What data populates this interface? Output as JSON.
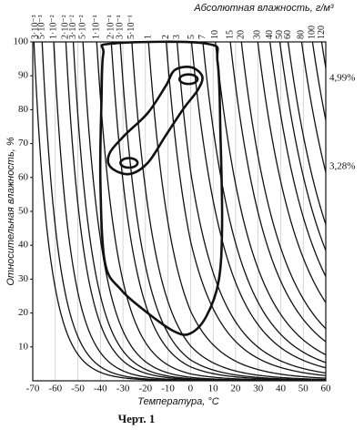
{
  "chart_data": {
    "type": "psychrometric",
    "title": "Абсолютная влажность, г/м³",
    "x_label": "Температура, °C",
    "y_label": "Относительная влажность, %",
    "xlim": [
      -70,
      60
    ],
    "xticks": [
      -70,
      -60,
      -50,
      -40,
      -30,
      -20,
      -10,
      0,
      10,
      20,
      30,
      40,
      50,
      60
    ],
    "ylim": [
      0,
      100
    ],
    "yticks": [
      10,
      20,
      30,
      40,
      50,
      60,
      70,
      80,
      90,
      100
    ],
    "grid": true,
    "color": "#111111",
    "curves": [
      {
        "value": 0.003,
        "label": "3·10⁻³"
      },
      {
        "value": 0.005,
        "label": "5·10⁻³"
      },
      {
        "value": 0.01,
        "label": "1·10⁻²"
      },
      {
        "value": 0.02,
        "label": "2·10⁻²"
      },
      {
        "value": 0.03,
        "label": "3·10⁻²"
      },
      {
        "value": 0.05,
        "label": "5·10⁻²"
      },
      {
        "value": 0.1,
        "label": "1·10⁻¹"
      },
      {
        "value": 0.2,
        "label": "2·10⁻¹"
      },
      {
        "value": 0.3,
        "label": "3·10⁻¹"
      },
      {
        "value": 0.5,
        "label": "5·10⁻¹"
      },
      {
        "value": 1,
        "label": "1"
      },
      {
        "value": 2,
        "label": "2"
      },
      {
        "value": 3,
        "label": "3"
      },
      {
        "value": 5,
        "label": "5"
      },
      {
        "value": 7,
        "label": "7"
      },
      {
        "value": 10,
        "label": "10"
      },
      {
        "value": 15,
        "label": "15"
      },
      {
        "value": 20,
        "label": "20"
      },
      {
        "value": 30,
        "label": "30"
      },
      {
        "value": 40,
        "label": "40"
      },
      {
        "value": 50,
        "label": "50"
      },
      {
        "value": 60,
        "label": "60"
      },
      {
        "value": 80,
        "label": "80"
      },
      {
        "value": 100,
        "label": "100"
      },
      {
        "value": 120,
        "label": "120"
      }
    ],
    "regions": [
      {
        "x": [
          -35,
          7,
          12,
          13.3,
          14,
          12.5,
          7,
          0,
          -7,
          -19,
          -31,
          -38,
          -40,
          -39.5,
          -38.7
        ],
        "y": [
          99.5,
          99.5,
          94,
          72,
          46,
          29.5,
          19,
          14,
          14.5,
          20,
          27,
          35,
          59,
          83,
          96.5
        ]
      },
      {
        "x": [
          0.3,
          -7,
          -11,
          -19,
          -29.3,
          -36,
          -35.4,
          -27.3,
          -19,
          -11,
          -3,
          3.2,
          5.2
        ],
        "y": [
          92.5,
          91.7,
          87,
          79,
          72.4,
          67,
          63,
          61,
          64.3,
          72.4,
          80.4,
          85.8,
          89.8
        ]
      }
    ],
    "ellipses": [
      {
        "cx": -0.9,
        "cy": 89,
        "rx": 4,
        "ry": 1.4
      },
      {
        "cx": -27.3,
        "cy": 64.3,
        "rx": 3.8,
        "ry": 1.4
      }
    ],
    "annotations": [
      "4,99%",
      "3,28%"
    ]
  },
  "caption": "Черт. 1"
}
